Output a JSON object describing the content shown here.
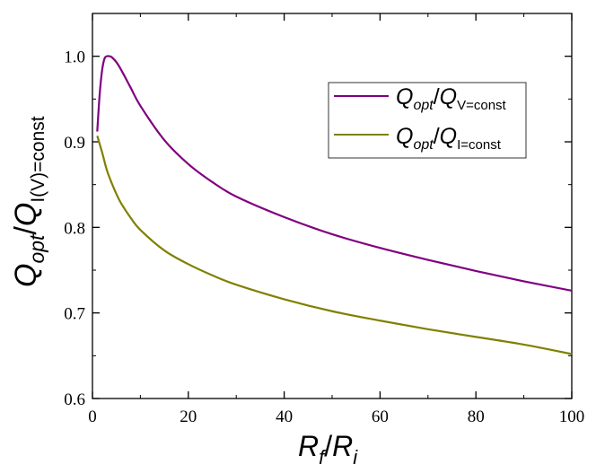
{
  "chart_data": {
    "type": "line",
    "xlabel": {
      "main": "R",
      "sub1": "f",
      "sep": "/",
      "main2": "R",
      "sub2": "i"
    },
    "ylabel": {
      "main": "Q",
      "sub1": "opt",
      "sep": "/",
      "main2": "Q",
      "sub2": "I(V)=const"
    },
    "xlim": [
      0,
      100
    ],
    "ylim": [
      0.6,
      1.05
    ],
    "xticks": [
      0,
      20,
      40,
      60,
      80,
      100
    ],
    "xtick_labels": [
      "0",
      "20",
      "40",
      "60",
      "80",
      "100"
    ],
    "yticks": [
      0.6,
      0.7,
      0.8,
      0.9,
      1.0
    ],
    "ytick_labels": [
      "0.6",
      "0.7",
      "0.8",
      "0.9",
      "1.0"
    ],
    "grid": false,
    "legend_position": "top-right",
    "series": [
      {
        "name": "Q_opt/Q_V=const",
        "legend": {
          "main": "Q",
          "sub1": "opt",
          "sep": "/",
          "main2": "Q",
          "sub2": "V=const"
        },
        "color": "#800080",
        "x": [
          1,
          1.5,
          2,
          2.5,
          3,
          3.5,
          4,
          5,
          6,
          8,
          10,
          15,
          20,
          25,
          30,
          40,
          50,
          60,
          70,
          80,
          90,
          100
        ],
        "y": [
          0.912,
          0.955,
          0.983,
          0.997,
          1.0,
          1.0,
          0.999,
          0.993,
          0.984,
          0.963,
          0.942,
          0.902,
          0.874,
          0.853,
          0.836,
          0.812,
          0.792,
          0.776,
          0.762,
          0.749,
          0.737,
          0.726
        ]
      },
      {
        "name": "Q_opt/Q_I=const",
        "legend": {
          "main": "Q",
          "sub1": "opt",
          "sep": "/",
          "main2": "Q",
          "sub2": "I=const"
        },
        "color": "#808000",
        "x": [
          1,
          2,
          3,
          4,
          5,
          6,
          8,
          10,
          15,
          20,
          25,
          30,
          40,
          50,
          60,
          70,
          80,
          90,
          100
        ],
        "y": [
          0.907,
          0.888,
          0.867,
          0.852,
          0.839,
          0.828,
          0.811,
          0.797,
          0.773,
          0.757,
          0.744,
          0.733,
          0.716,
          0.702,
          0.691,
          0.681,
          0.672,
          0.663,
          0.652
        ]
      }
    ]
  }
}
